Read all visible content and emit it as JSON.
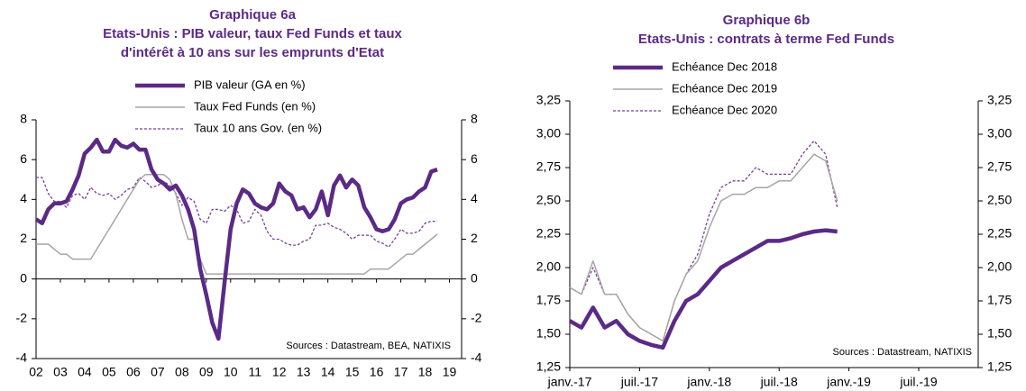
{
  "chart_data": [
    {
      "type": "line",
      "title": "Graphique 6a",
      "subtitle": [
        "Etats-Unis : PIB valeur, taux Fed Funds et taux",
        "d'intérêt à 10 ans sur les emprunts d'Etat"
      ],
      "sources": "Sources  : Datastream,  BEA,  NATIXIS",
      "x": [
        2002,
        2002.25,
        2002.5,
        2002.75,
        2003,
        2003.25,
        2003.5,
        2003.75,
        2004,
        2004.25,
        2004.5,
        2004.75,
        2005,
        2005.25,
        2005.5,
        2005.75,
        2006,
        2006.25,
        2006.5,
        2006.75,
        2007,
        2007.25,
        2007.5,
        2007.75,
        2008,
        2008.25,
        2008.5,
        2008.75,
        2009,
        2009.25,
        2009.5,
        2009.75,
        2010,
        2010.25,
        2010.5,
        2010.75,
        2011,
        2011.25,
        2011.5,
        2011.75,
        2012,
        2012.25,
        2012.5,
        2012.75,
        2013,
        2013.25,
        2013.5,
        2013.75,
        2014,
        2014.25,
        2014.5,
        2014.75,
        2015,
        2015.25,
        2015.5,
        2015.75,
        2016,
        2016.25,
        2016.5,
        2016.75,
        2017,
        2017.25,
        2017.5,
        2017.75,
        2018,
        2018.25,
        2018.5
      ],
      "series": [
        {
          "name": "PIB valeur (GA en %)",
          "color": "#5b2a86",
          "line_style": "thick",
          "values": [
            3.0,
            2.8,
            3.5,
            3.8,
            3.8,
            3.9,
            4.5,
            5.2,
            6.3,
            6.6,
            7.0,
            6.4,
            6.4,
            7.0,
            6.7,
            6.6,
            6.8,
            6.5,
            6.5,
            5.5,
            5.0,
            4.8,
            4.5,
            4.7,
            4.2,
            3.5,
            2.5,
            0.5,
            -0.8,
            -2.2,
            -3.0,
            -0.2,
            2.5,
            3.8,
            4.5,
            4.3,
            3.8,
            3.6,
            3.5,
            3.8,
            4.8,
            4.4,
            4.2,
            3.5,
            3.6,
            3.1,
            3.5,
            4.4,
            3.2,
            4.7,
            5.2,
            4.6,
            5.0,
            4.7,
            3.6,
            3.1,
            2.5,
            2.4,
            2.5,
            3.0,
            3.8,
            4.0,
            4.1,
            4.4,
            4.6,
            5.4,
            5.5
          ]
        },
        {
          "name": "Taux Fed Funds (en %)",
          "color": "#a6a6a6",
          "line_style": "solid",
          "values": [
            1.75,
            1.75,
            1.75,
            1.5,
            1.25,
            1.25,
            1.0,
            1.0,
            1.0,
            1.0,
            1.5,
            2.0,
            2.5,
            3.0,
            3.5,
            4.0,
            4.5,
            5.0,
            5.25,
            5.25,
            5.25,
            5.25,
            5.0,
            4.25,
            3.0,
            2.0,
            2.0,
            1.0,
            0.25,
            0.25,
            0.25,
            0.25,
            0.25,
            0.25,
            0.25,
            0.25,
            0.25,
            0.25,
            0.25,
            0.25,
            0.25,
            0.25,
            0.25,
            0.25,
            0.25,
            0.25,
            0.25,
            0.25,
            0.25,
            0.25,
            0.25,
            0.25,
            0.25,
            0.25,
            0.25,
            0.5,
            0.5,
            0.5,
            0.5,
            0.75,
            1.0,
            1.25,
            1.25,
            1.5,
            1.75,
            2.0,
            2.25
          ]
        },
        {
          "name": "Taux 10 ans Gov. (en %)",
          "color": "#7b3f98",
          "line_style": "dashed",
          "values": [
            5.1,
            5.1,
            4.3,
            3.9,
            3.9,
            3.6,
            4.2,
            4.3,
            4.0,
            4.6,
            4.3,
            4.2,
            4.3,
            4.0,
            4.2,
            4.5,
            4.6,
            5.1,
            4.9,
            4.6,
            4.7,
            4.9,
            4.7,
            4.3,
            3.7,
            4.1,
            3.9,
            3.0,
            2.8,
            3.5,
            3.5,
            3.4,
            3.7,
            3.5,
            2.8,
            2.9,
            3.5,
            3.2,
            2.4,
            2.0,
            2.0,
            1.8,
            1.7,
            1.7,
            1.9,
            2.0,
            2.7,
            2.7,
            2.8,
            2.6,
            2.5,
            2.3,
            2.0,
            2.2,
            2.2,
            2.2,
            1.9,
            1.8,
            1.6,
            2.0,
            2.5,
            2.3,
            2.3,
            2.4,
            2.8,
            2.9,
            2.9
          ]
        }
      ],
      "xlim": [
        2002,
        2019.5
      ],
      "xticks": [
        {
          "value": 2002,
          "label": "02"
        },
        {
          "value": 2003,
          "label": "03"
        },
        {
          "value": 2004,
          "label": "04"
        },
        {
          "value": 2005,
          "label": "05"
        },
        {
          "value": 2006,
          "label": "06"
        },
        {
          "value": 2007,
          "label": "07"
        },
        {
          "value": 2008,
          "label": "08"
        },
        {
          "value": 2009,
          "label": "09"
        },
        {
          "value": 2010,
          "label": "10"
        },
        {
          "value": 2011,
          "label": "11"
        },
        {
          "value": 2012,
          "label": "12"
        },
        {
          "value": 2013,
          "label": "13"
        },
        {
          "value": 2014,
          "label": "14"
        },
        {
          "value": 2015,
          "label": "15"
        },
        {
          "value": 2016,
          "label": "16"
        },
        {
          "value": 2017,
          "label": "17"
        },
        {
          "value": 2018,
          "label": "18"
        },
        {
          "value": 2019,
          "label": "19"
        }
      ],
      "ylim": [
        -4,
        8
      ],
      "yticks": [
        -4,
        -2,
        0,
        2,
        4,
        6,
        8
      ],
      "y2lim": [
        -4,
        8
      ],
      "y2ticks": [
        -4,
        -2,
        0,
        2,
        4,
        6,
        8
      ]
    },
    {
      "type": "line",
      "title": "Graphique 6b",
      "subtitle": [
        "Etats-Unis : contrats à terme Fed Funds"
      ],
      "sources": "Sources  : Datastream,  NATIXIS",
      "categories": [
        "janv.-17",
        null,
        null,
        null,
        null,
        null,
        "juil.-17",
        null,
        null,
        null,
        null,
        null,
        "janv.-18",
        null,
        null,
        null,
        null,
        null,
        "juil.-18",
        null,
        null,
        null,
        null,
        null,
        "janv.-19",
        null,
        null,
        null,
        null,
        null,
        "juil.-19"
      ],
      "series": [
        {
          "name": "Echéance Dec 2018",
          "color": "#5b2a86",
          "line_style": "thick",
          "values": [
            1.6,
            1.55,
            1.7,
            1.55,
            1.6,
            1.5,
            1.45,
            1.42,
            1.4,
            1.6,
            1.75,
            1.8,
            1.9,
            2.0,
            2.05,
            2.1,
            2.15,
            2.2,
            2.2,
            2.22,
            2.25,
            2.27,
            2.28,
            2.27,
            null,
            null,
            null,
            null,
            null,
            null,
            null
          ]
        },
        {
          "name": "Echéance Dec 2019",
          "color": "#a6a6a6",
          "line_style": "solid",
          "values": [
            1.85,
            1.8,
            2.05,
            1.8,
            1.8,
            1.65,
            1.55,
            1.5,
            1.45,
            1.75,
            1.95,
            2.05,
            2.3,
            2.5,
            2.55,
            2.55,
            2.6,
            2.6,
            2.65,
            2.65,
            2.75,
            2.85,
            2.8,
            2.5,
            null,
            null,
            null,
            null,
            null,
            null,
            null
          ]
        },
        {
          "name": "Echéance Dec 2020",
          "color": "#7b3f98",
          "line_style": "dashed",
          "values": [
            1.85,
            1.8,
            2.0,
            1.8,
            1.8,
            1.65,
            1.55,
            1.5,
            1.45,
            1.75,
            1.95,
            2.1,
            2.4,
            2.6,
            2.65,
            2.65,
            2.75,
            2.7,
            2.7,
            2.7,
            2.85,
            2.95,
            2.85,
            2.45,
            null,
            null,
            null,
            null,
            null,
            null,
            null
          ]
        }
      ],
      "ylim": [
        1.25,
        3.25
      ],
      "yticks": [
        {
          "value": 1.25,
          "label": "1,25"
        },
        {
          "value": 1.5,
          "label": "1,50"
        },
        {
          "value": 1.75,
          "label": "1,75"
        },
        {
          "value": 2,
          "label": "2,00"
        },
        {
          "value": 2.25,
          "label": "2,25"
        },
        {
          "value": 2.5,
          "label": "2,50"
        },
        {
          "value": 2.75,
          "label": "2,75"
        },
        {
          "value": 3,
          "label": "3,00"
        },
        {
          "value": 3.25,
          "label": "3,25"
        }
      ],
      "y2lim": [
        1.25,
        3.25
      ],
      "y2ticks": [
        {
          "value": 1.25,
          "label": "1,25"
        },
        {
          "value": 1.5,
          "label": "1,50"
        },
        {
          "value": 1.75,
          "label": "1,75"
        },
        {
          "value": 2,
          "label": "2,00"
        },
        {
          "value": 2.25,
          "label": "2,25"
        },
        {
          "value": 2.5,
          "label": "2,50"
        },
        {
          "value": 2.75,
          "label": "2,75"
        },
        {
          "value": 3,
          "label": "3,00"
        },
        {
          "value": 3.25,
          "label": "3,25"
        }
      ]
    }
  ]
}
